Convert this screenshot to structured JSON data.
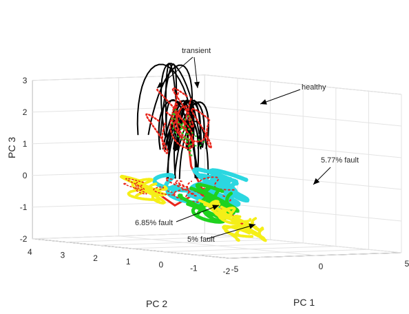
{
  "chart_data": {
    "type": "scatter3d",
    "title": "",
    "axes": {
      "x": {
        "label": "PC 1",
        "range": [
          -5,
          5
        ],
        "ticks": [
          "-5",
          "0",
          "5"
        ]
      },
      "y": {
        "label": "PC 2",
        "range": [
          -2,
          4
        ],
        "ticks": [
          "-2",
          "-1",
          "0",
          "1",
          "2",
          "3",
          "4"
        ]
      },
      "z": {
        "label": "PC 3",
        "range": [
          -2,
          3
        ],
        "ticks": [
          "-2",
          "-1",
          "0",
          "1",
          "2",
          "3"
        ]
      }
    },
    "grid": true,
    "legend": "none",
    "clusters": [
      {
        "annotation": "healthy",
        "color": "#000000",
        "highlight": "#e8251b",
        "center": [
          0.5,
          2.2,
          1.7
        ]
      },
      {
        "annotation": "transient",
        "color": "#000000",
        "center": [
          2.5,
          3.8,
          2.3
        ]
      },
      {
        "annotation": "5.77% fault",
        "color": "#1fd21f",
        "center": [
          -1.6,
          0.2,
          -0.6
        ]
      },
      {
        "annotation": "6.85% fault",
        "color": "#f5ef18",
        "center": [
          1.0,
          3.5,
          -0.5
        ]
      },
      {
        "annotation": "5% fault",
        "color": "#f5ef18",
        "center": [
          0.8,
          0.5,
          -1.4
        ]
      },
      {
        "annotation": "",
        "color": "#2bd7e0",
        "highlight": "#e8251b",
        "center": [
          0.3,
          1.6,
          -0.3
        ]
      }
    ],
    "annotations": [
      {
        "text": "transient"
      },
      {
        "text": "healthy"
      },
      {
        "text": "5.77% fault"
      },
      {
        "text": "6.85% fault"
      },
      {
        "text": "5% fault"
      }
    ]
  }
}
